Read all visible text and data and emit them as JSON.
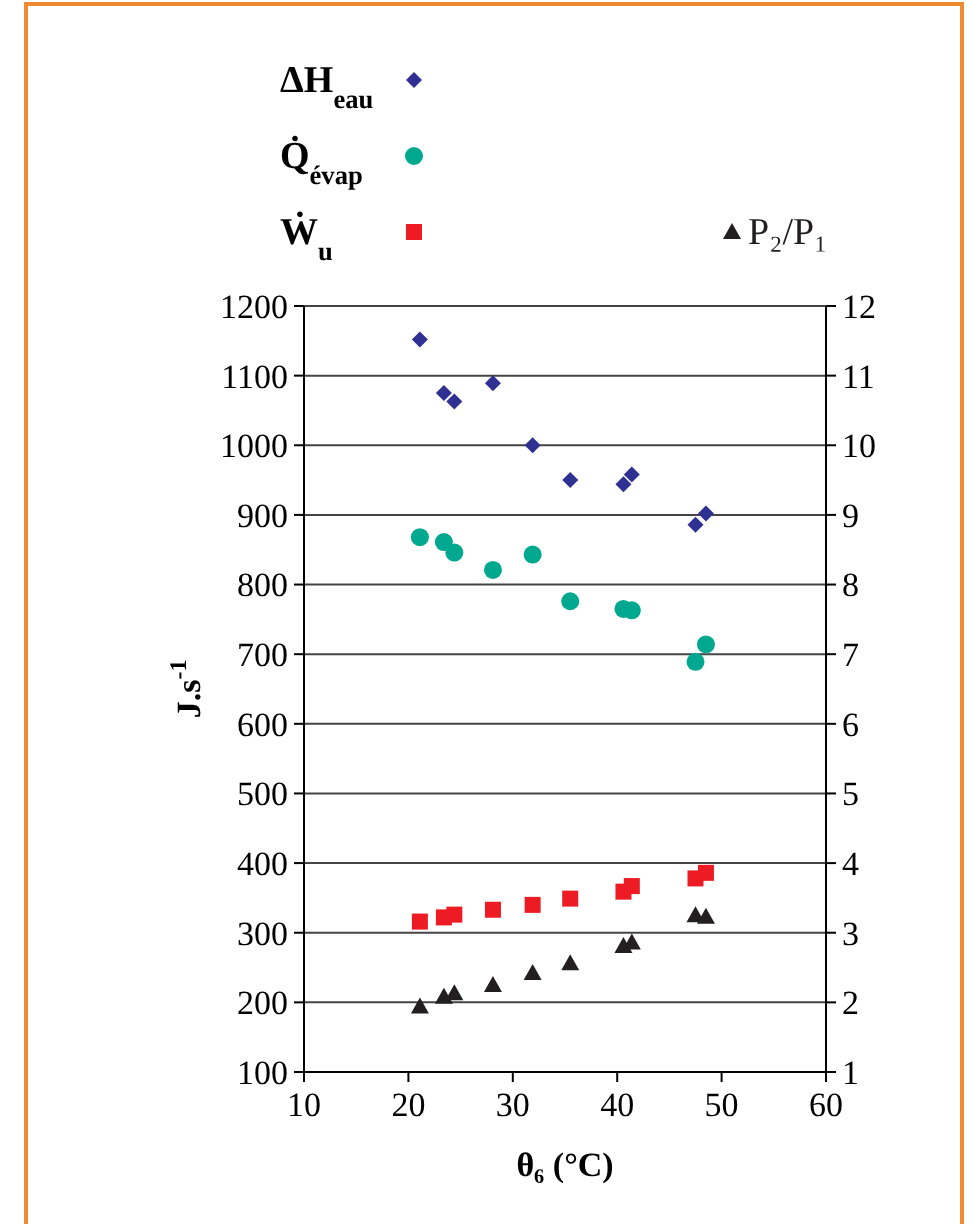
{
  "chart_data": {
    "type": "scatter",
    "xlabel": "θ₆ (°C)",
    "ylabel": "J.s$^{-1}$",
    "x": [
      21.1,
      23.4,
      24.4,
      28.1,
      31.9,
      35.5,
      40.6,
      41.4,
      47.5,
      48.5
    ],
    "xlim": [
      10,
      60
    ],
    "xticks": [
      10,
      20,
      30,
      40,
      50,
      60
    ],
    "ylim": [
      100,
      1200
    ],
    "yticks": [
      100,
      200,
      300,
      400,
      500,
      600,
      700,
      800,
      900,
      1000,
      1100,
      1200
    ],
    "y2lim": [
      1,
      12
    ],
    "y2ticks": [
      1,
      2,
      3,
      4,
      5,
      6,
      7,
      8,
      9,
      10,
      11,
      12
    ],
    "grid": "y",
    "legend": "top",
    "series": [
      {
        "name": "ΔH$_{eau}$",
        "color": "#2e3192",
        "marker": "diamond",
        "values": [
          1152,
          1075,
          1063,
          1089,
          1000,
          950,
          944,
          958,
          886,
          902
        ]
      },
      {
        "name": "Q̇$_{évap}$",
        "color": "#00a88f",
        "marker": "circle",
        "values": [
          868,
          861,
          846,
          821,
          843,
          776,
          765,
          763,
          689,
          714
        ]
      },
      {
        "name": "Ẇ$_{u}$",
        "color": "#ed1c24",
        "marker": "square",
        "values": [
          316,
          322,
          326,
          333,
          340,
          349,
          359,
          367,
          378,
          386
        ]
      },
      {
        "name": "P₂/P₁",
        "color": "#231f20",
        "marker": "triangle",
        "axis": "y2",
        "values": [
          1.94,
          2.08,
          2.13,
          2.25,
          2.42,
          2.56,
          2.81,
          2.86,
          3.25,
          3.23
        ]
      }
    ]
  }
}
